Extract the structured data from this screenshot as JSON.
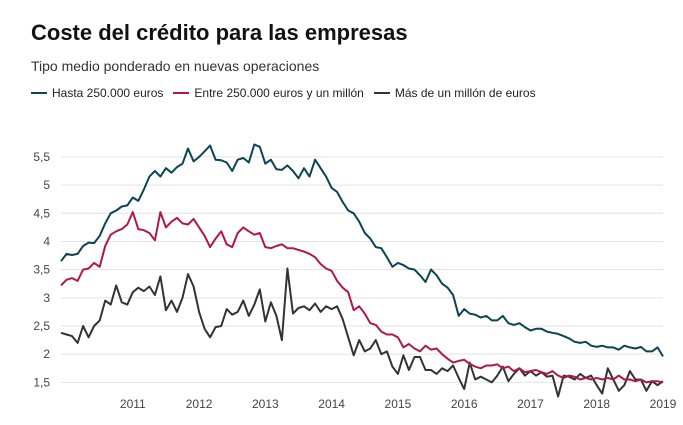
{
  "header": {
    "title": "Coste del crédito para las empresas",
    "subtitle": "Tipo medio ponderado en nuevas operaciones"
  },
  "colors": {
    "hasta_250000": "#0b4455",
    "entre_250000_y_millon": "#b0184a",
    "mas_de_millon": "#333333",
    "grid": "#e3e3e3"
  },
  "chart_data": {
    "type": "line",
    "title": "Coste del crédito para las empresas",
    "subtitle": "Tipo medio ponderado en nuevas operaciones",
    "xlabel": "",
    "ylabel": "",
    "ylim": [
      1.4,
      5.8
    ],
    "yticks": [
      "1,5",
      "2",
      "2,5",
      "3",
      "3,5",
      "4",
      "4,5",
      "5",
      "5,5"
    ],
    "ytick_values": [
      1.5,
      2,
      2.5,
      3,
      3.5,
      4,
      4.5,
      5,
      5.5
    ],
    "xticks": [
      "2011",
      "2012",
      "2013",
      "2014",
      "2015",
      "2016",
      "2017",
      "2018",
      "2019"
    ],
    "x_start": "2010-06",
    "x_frequency": "monthly",
    "grid": "horizontal",
    "legend_position": "top-left",
    "series": [
      {
        "name": "Hasta 250.000 euros",
        "color": "#0b4455",
        "values": [
          3.65,
          3.78,
          3.76,
          3.78,
          3.92,
          3.98,
          3.97,
          4.1,
          4.32,
          4.5,
          4.55,
          4.62,
          4.64,
          4.78,
          4.72,
          4.92,
          5.15,
          5.25,
          5.15,
          5.3,
          5.22,
          5.32,
          5.38,
          5.65,
          5.42,
          5.5,
          5.6,
          5.7,
          5.45,
          5.44,
          5.4,
          5.25,
          5.45,
          5.48,
          5.4,
          5.72,
          5.68,
          5.38,
          5.45,
          5.28,
          5.27,
          5.35,
          5.25,
          5.12,
          5.3,
          5.15,
          5.45,
          5.3,
          5.15,
          4.95,
          4.88,
          4.7,
          4.55,
          4.5,
          4.35,
          4.15,
          4.05,
          3.9,
          3.88,
          3.72,
          3.55,
          3.62,
          3.58,
          3.52,
          3.5,
          3.4,
          3.28,
          3.5,
          3.4,
          3.25,
          3.18,
          3.05,
          2.68,
          2.8,
          2.72,
          2.7,
          2.65,
          2.68,
          2.6,
          2.6,
          2.68,
          2.55,
          2.52,
          2.55,
          2.48,
          2.42,
          2.45,
          2.45,
          2.4,
          2.38,
          2.36,
          2.32,
          2.28,
          2.22,
          2.2,
          2.22,
          2.15,
          2.13,
          2.15,
          2.12,
          2.12,
          2.08,
          2.15,
          2.12,
          2.1,
          2.13,
          2.05,
          2.05,
          2.12,
          1.96
        ]
      },
      {
        "name": "Entre 250.000 euros y un millón",
        "color": "#b0184a",
        "values": [
          3.22,
          3.32,
          3.35,
          3.3,
          3.5,
          3.52,
          3.62,
          3.55,
          3.92,
          4.12,
          4.18,
          4.22,
          4.3,
          4.52,
          4.22,
          4.2,
          4.15,
          4.02,
          4.52,
          4.25,
          4.35,
          4.42,
          4.32,
          4.3,
          4.4,
          4.25,
          4.1,
          3.9,
          4.05,
          4.18,
          3.95,
          3.9,
          4.15,
          4.25,
          4.18,
          4.12,
          4.15,
          3.9,
          3.88,
          3.92,
          3.95,
          3.88,
          3.88,
          3.85,
          3.82,
          3.78,
          3.72,
          3.6,
          3.52,
          3.48,
          3.3,
          3.18,
          3.1,
          2.78,
          2.85,
          2.72,
          2.55,
          2.52,
          2.4,
          2.35,
          2.35,
          2.3,
          2.12,
          2.18,
          2.1,
          2.05,
          2.15,
          2.08,
          2.1,
          2.0,
          1.92,
          1.85,
          1.88,
          1.9,
          1.83,
          1.78,
          1.75,
          1.8,
          1.8,
          1.82,
          1.75,
          1.78,
          1.7,
          1.75,
          1.68,
          1.7,
          1.72,
          1.68,
          1.65,
          1.7,
          1.62,
          1.58,
          1.62,
          1.6,
          1.55,
          1.58,
          1.55,
          1.58,
          1.55,
          1.58,
          1.55,
          1.62,
          1.55,
          1.55,
          1.52,
          1.55,
          1.5,
          1.52,
          1.52,
          1.5
        ]
      },
      {
        "name": "Más de un millón de euros",
        "color": "#333333",
        "values": [
          2.38,
          2.35,
          2.32,
          2.2,
          2.5,
          2.3,
          2.5,
          2.6,
          2.95,
          2.88,
          3.22,
          2.92,
          2.88,
          3.1,
          3.18,
          3.12,
          3.2,
          3.05,
          3.38,
          2.78,
          2.95,
          2.75,
          3.0,
          3.42,
          3.2,
          2.75,
          2.45,
          2.3,
          2.48,
          2.5,
          2.8,
          2.7,
          2.75,
          2.95,
          2.68,
          2.88,
          3.15,
          2.58,
          2.92,
          2.68,
          2.25,
          3.52,
          2.72,
          2.82,
          2.85,
          2.78,
          2.9,
          2.75,
          2.85,
          2.8,
          2.85,
          2.62,
          2.3,
          1.98,
          2.25,
          2.05,
          2.1,
          2.25,
          2.0,
          2.05,
          1.78,
          1.65,
          1.98,
          1.72,
          1.95,
          1.95,
          1.72,
          1.72,
          1.65,
          1.75,
          1.7,
          1.8,
          1.58,
          1.38,
          1.85,
          1.55,
          1.6,
          1.55,
          1.5,
          1.62,
          1.78,
          1.52,
          1.65,
          1.75,
          1.62,
          1.7,
          1.62,
          1.68,
          1.6,
          1.62,
          1.25,
          1.62,
          1.6,
          1.55,
          1.65,
          1.58,
          1.62,
          1.45,
          1.3,
          1.75,
          1.55,
          1.35,
          1.45,
          1.7,
          1.55,
          1.55,
          1.35,
          1.52,
          1.45,
          1.52
        ]
      }
    ]
  }
}
